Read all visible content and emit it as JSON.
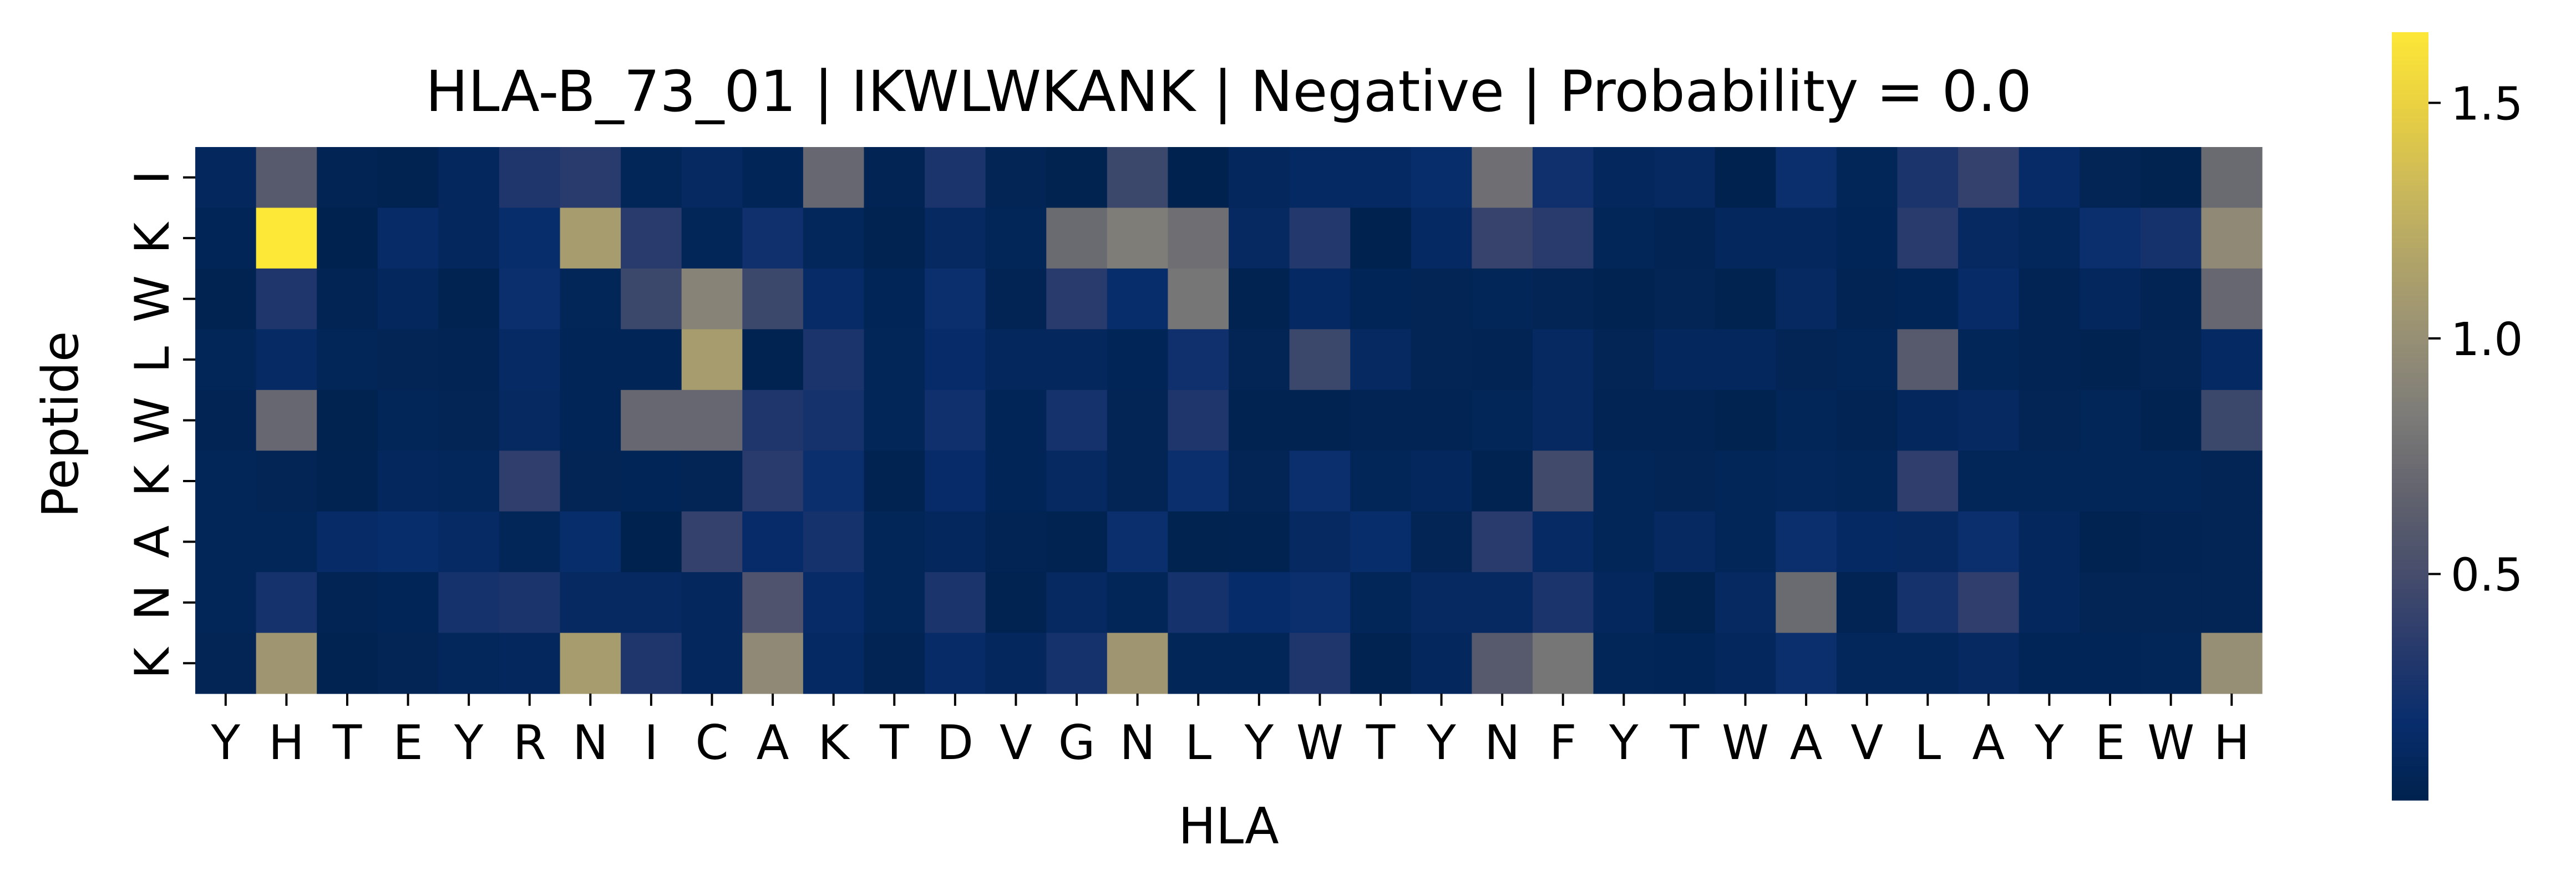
{
  "chart_data": {
    "type": "heatmap",
    "title": "HLA-B_73_01 | IKWLWKANK | Negative | Probability = 0.0",
    "xlabel": "HLA",
    "ylabel": "Peptide",
    "x_categories": [
      "Y",
      "H",
      "T",
      "E",
      "Y",
      "R",
      "N",
      "I",
      "C",
      "A",
      "K",
      "T",
      "D",
      "V",
      "G",
      "N",
      "L",
      "Y",
      "W",
      "T",
      "Y",
      "N",
      "F",
      "Y",
      "T",
      "W",
      "A",
      "V",
      "L",
      "A",
      "Y",
      "E",
      "W",
      "H"
    ],
    "y_categories": [
      "I",
      "K",
      "W",
      "L",
      "W",
      "K",
      "A",
      "N",
      "K"
    ],
    "colormap": "cividis",
    "colorbar": {
      "range": [
        0.02,
        1.65
      ],
      "ticks": [
        0.5,
        1.0,
        1.5
      ],
      "tick_labels": [
        "0.5",
        "1.0",
        "1.5"
      ]
    },
    "grid": false,
    "values": [
      [
        0.1,
        0.6,
        0.05,
        0.04,
        0.1,
        0.3,
        0.35,
        0.08,
        0.12,
        0.07,
        0.7,
        0.05,
        0.28,
        0.06,
        0.03,
        0.45,
        0.02,
        0.1,
        0.13,
        0.13,
        0.18,
        0.75,
        0.22,
        0.1,
        0.12,
        0.02,
        0.2,
        0.08,
        0.28,
        0.4,
        0.15,
        0.06,
        0.03,
        0.72
      ],
      [
        0.07,
        1.65,
        0.02,
        0.15,
        0.1,
        0.18,
        1.1,
        0.35,
        0.08,
        0.22,
        0.09,
        0.04,
        0.12,
        0.08,
        0.72,
        0.85,
        0.75,
        0.12,
        0.32,
        0.02,
        0.13,
        0.42,
        0.35,
        0.08,
        0.05,
        0.1,
        0.1,
        0.07,
        0.35,
        0.12,
        0.09,
        0.2,
        0.25,
        0.95
      ],
      [
        0.04,
        0.3,
        0.05,
        0.1,
        0.04,
        0.2,
        0.08,
        0.45,
        0.9,
        0.45,
        0.15,
        0.07,
        0.2,
        0.05,
        0.35,
        0.18,
        0.8,
        0.04,
        0.13,
        0.07,
        0.06,
        0.08,
        0.06,
        0.04,
        0.06,
        0.03,
        0.12,
        0.05,
        0.07,
        0.15,
        0.05,
        0.1,
        0.05,
        0.7
      ],
      [
        0.08,
        0.14,
        0.08,
        0.06,
        0.05,
        0.14,
        0.07,
        0.07,
        1.1,
        0.04,
        0.28,
        0.08,
        0.16,
        0.1,
        0.1,
        0.07,
        0.22,
        0.06,
        0.45,
        0.12,
        0.06,
        0.05,
        0.12,
        0.06,
        0.1,
        0.1,
        0.06,
        0.08,
        0.6,
        0.08,
        0.05,
        0.04,
        0.06,
        0.13
      ],
      [
        0.05,
        0.7,
        0.03,
        0.08,
        0.06,
        0.12,
        0.07,
        0.7,
        0.7,
        0.3,
        0.25,
        0.08,
        0.22,
        0.07,
        0.25,
        0.06,
        0.3,
        0.04,
        0.04,
        0.05,
        0.05,
        0.08,
        0.12,
        0.05,
        0.05,
        0.03,
        0.08,
        0.05,
        0.1,
        0.12,
        0.06,
        0.08,
        0.04,
        0.45
      ],
      [
        0.08,
        0.06,
        0.04,
        0.1,
        0.09,
        0.38,
        0.06,
        0.07,
        0.06,
        0.35,
        0.2,
        0.04,
        0.16,
        0.07,
        0.12,
        0.06,
        0.2,
        0.06,
        0.2,
        0.08,
        0.1,
        0.04,
        0.48,
        0.08,
        0.06,
        0.08,
        0.09,
        0.08,
        0.38,
        0.08,
        0.08,
        0.08,
        0.08,
        0.06
      ],
      [
        0.08,
        0.08,
        0.15,
        0.18,
        0.14,
        0.08,
        0.18,
        0.02,
        0.4,
        0.16,
        0.25,
        0.08,
        0.1,
        0.05,
        0.04,
        0.2,
        0.03,
        0.04,
        0.12,
        0.18,
        0.06,
        0.35,
        0.14,
        0.08,
        0.12,
        0.08,
        0.2,
        0.13,
        0.12,
        0.2,
        0.1,
        0.04,
        0.05,
        0.06
      ],
      [
        0.08,
        0.25,
        0.05,
        0.07,
        0.25,
        0.28,
        0.12,
        0.12,
        0.1,
        0.55,
        0.15,
        0.08,
        0.28,
        0.04,
        0.12,
        0.08,
        0.25,
        0.17,
        0.2,
        0.08,
        0.12,
        0.12,
        0.28,
        0.1,
        0.03,
        0.12,
        0.72,
        0.05,
        0.25,
        0.38,
        0.1,
        0.06,
        0.06,
        0.06
      ],
      [
        0.06,
        1.05,
        0.04,
        0.06,
        0.09,
        0.1,
        1.1,
        0.3,
        0.1,
        0.95,
        0.13,
        0.05,
        0.15,
        0.1,
        0.25,
        1.05,
        0.08,
        0.08,
        0.3,
        0.04,
        0.1,
        0.6,
        0.8,
        0.08,
        0.07,
        0.1,
        0.2,
        0.09,
        0.09,
        0.12,
        0.07,
        0.07,
        0.08,
        1.0
      ]
    ]
  }
}
